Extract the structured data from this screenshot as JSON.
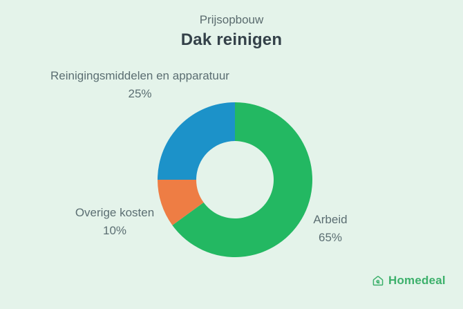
{
  "header": {
    "subtitle": "Prijsopbouw",
    "title": "Dak reinigen"
  },
  "chart_data": {
    "type": "pie",
    "variant": "donut",
    "title": "Prijsopbouw — Dak reinigen",
    "direction": "clockwise",
    "start_angle_deg": 0,
    "inner_radius_ratio": 0.5,
    "labels_position": "outside-callouts",
    "legend": "none",
    "segments": [
      {
        "label": "Arbeid",
        "value": 65,
        "display": "65%",
        "color": "#23b862"
      },
      {
        "label": "Overige kosten",
        "value": 10,
        "display": "10%",
        "color": "#ee7d44"
      },
      {
        "label": "Reinigingsmiddelen en apparatuur",
        "value": 25,
        "display": "25%",
        "color": "#1c92c9"
      }
    ]
  },
  "footer": {
    "brand": "Homedeal",
    "brand_color": "#3cb06b"
  },
  "colors": {
    "background": "#e4f3ea",
    "title_text": "#344149",
    "subtitle_text": "#5a6b6e",
    "label_text": "#5b6e72"
  }
}
